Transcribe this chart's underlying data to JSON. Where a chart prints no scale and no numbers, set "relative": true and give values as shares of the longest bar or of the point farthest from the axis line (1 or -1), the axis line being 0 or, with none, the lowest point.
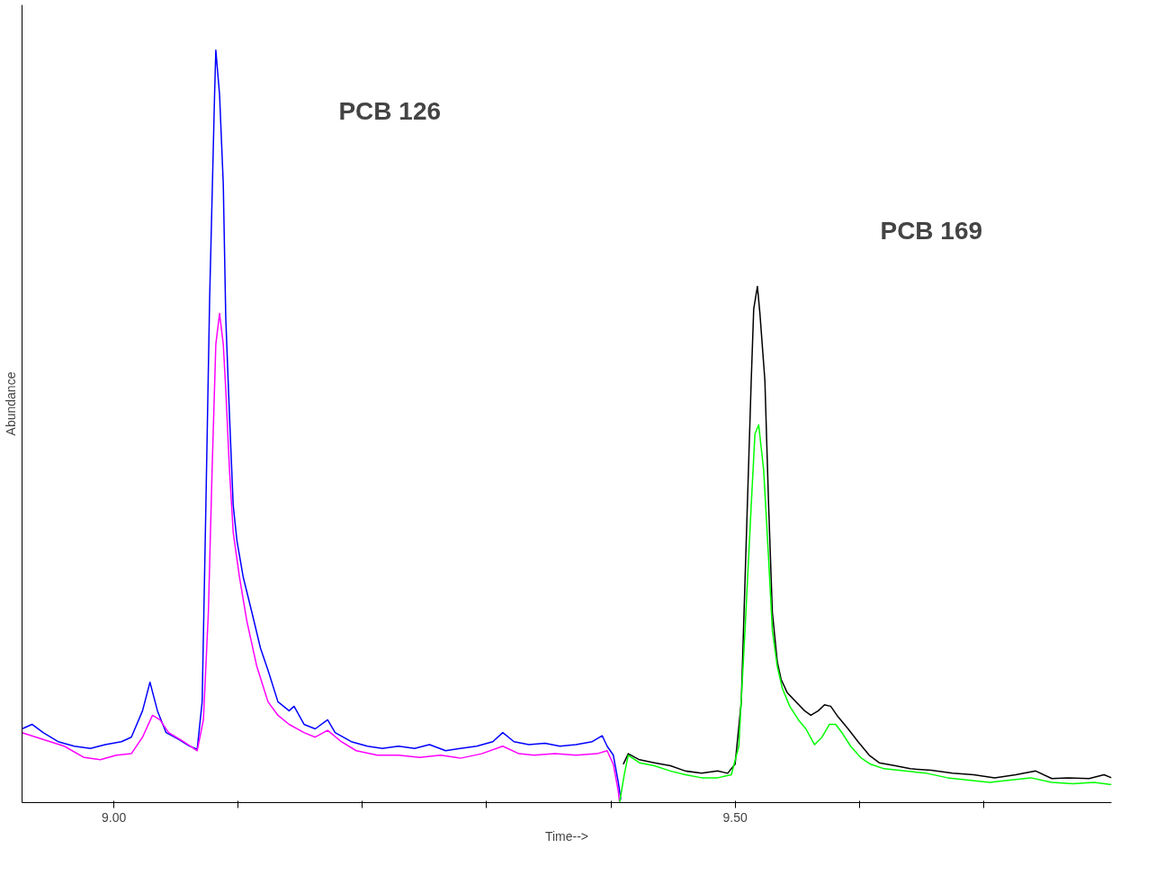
{
  "chart_data": {
    "type": "line",
    "relative": true,
    "xlabel": "Time-->",
    "ylabel": "Abundance",
    "xlim": [
      8.926,
      9.803
    ],
    "xticks": [
      {
        "value": 9.0,
        "label": "9.00"
      },
      {
        "value": 9.1,
        "label": null
      },
      {
        "value": 9.2,
        "label": null
      },
      {
        "value": 9.3,
        "label": null
      },
      {
        "value": 9.4,
        "label": null
      },
      {
        "value": 9.5,
        "label": "9.50"
      },
      {
        "value": 9.6,
        "label": null
      },
      {
        "value": 9.7,
        "label": null
      }
    ],
    "tick_labels": "x",
    "grid": false,
    "marker": "none",
    "line_style": "solid",
    "annotations": [
      "PCB 126",
      "PCB 169"
    ],
    "series": [
      {
        "color": "#0000ff",
        "x": [
          8.926,
          8.934,
          8.943,
          8.955,
          8.968,
          8.981,
          8.993,
          9.006,
          9.014,
          9.023,
          9.029,
          9.035,
          9.042,
          9.052,
          9.061,
          9.067,
          9.071,
          9.074,
          9.077,
          9.081,
          9.082,
          9.085,
          9.088,
          9.09,
          9.093,
          9.096,
          9.099,
          9.104,
          9.111,
          9.118,
          9.124,
          9.132,
          9.141,
          9.145,
          9.153,
          9.162,
          9.172,
          9.178,
          9.191,
          9.204,
          9.216,
          9.229,
          9.242,
          9.254,
          9.267,
          9.279,
          9.292,
          9.305,
          9.313,
          9.322,
          9.334,
          9.347,
          9.359,
          9.372,
          9.385,
          9.393,
          9.397,
          9.402,
          9.406,
          9.408
        ],
        "values": [
          0.098,
          0.104,
          0.093,
          0.081,
          0.075,
          0.072,
          0.077,
          0.081,
          0.087,
          0.122,
          0.16,
          0.122,
          0.093,
          0.084,
          0.075,
          0.071,
          0.134,
          0.395,
          0.668,
          0.941,
          1.0,
          0.941,
          0.822,
          0.644,
          0.514,
          0.395,
          0.348,
          0.3,
          0.253,
          0.205,
          0.176,
          0.134,
          0.122,
          0.128,
          0.104,
          0.098,
          0.11,
          0.093,
          0.081,
          0.075,
          0.072,
          0.075,
          0.072,
          0.077,
          0.069,
          0.072,
          0.075,
          0.081,
          0.093,
          0.081,
          0.077,
          0.079,
          0.075,
          0.077,
          0.081,
          0.089,
          0.075,
          0.063,
          0.027,
          0.004
        ]
      },
      {
        "color": "#ff00ff",
        "x": [
          8.926,
          8.943,
          8.96,
          8.976,
          8.989,
          9.002,
          9.014,
          9.023,
          9.031,
          9.037,
          9.044,
          9.056,
          9.067,
          9.072,
          9.076,
          9.079,
          9.082,
          9.085,
          9.088,
          9.09,
          9.093,
          9.096,
          9.101,
          9.107,
          9.115,
          9.124,
          9.132,
          9.141,
          9.153,
          9.162,
          9.172,
          9.183,
          9.195,
          9.212,
          9.229,
          9.246,
          9.263,
          9.279,
          9.296,
          9.313,
          9.326,
          9.338,
          9.355,
          9.372,
          9.389,
          9.397,
          9.402,
          9.406,
          9.407
        ],
        "values": [
          0.093,
          0.084,
          0.075,
          0.06,
          0.057,
          0.063,
          0.065,
          0.087,
          0.116,
          0.11,
          0.093,
          0.081,
          0.069,
          0.11,
          0.253,
          0.442,
          0.609,
          0.65,
          0.609,
          0.549,
          0.442,
          0.359,
          0.3,
          0.241,
          0.181,
          0.134,
          0.116,
          0.104,
          0.093,
          0.087,
          0.096,
          0.081,
          0.069,
          0.063,
          0.063,
          0.06,
          0.063,
          0.059,
          0.065,
          0.075,
          0.065,
          0.063,
          0.065,
          0.063,
          0.065,
          0.069,
          0.051,
          0.015,
          0.0
        ]
      },
      {
        "color": "#000000",
        "x": [
          9.41,
          9.414,
          9.423,
          9.435,
          9.448,
          9.46,
          9.473,
          9.486,
          9.494,
          9.5,
          9.505,
          9.509,
          9.513,
          9.515,
          9.518,
          9.52,
          9.524,
          9.527,
          9.53,
          9.534,
          9.537,
          9.542,
          9.549,
          9.556,
          9.561,
          9.567,
          9.572,
          9.577,
          9.582,
          9.591,
          9.599,
          9.608,
          9.616,
          9.629,
          9.641,
          9.658,
          9.675,
          9.692,
          9.709,
          9.726,
          9.742,
          9.755,
          9.768,
          9.785,
          9.797,
          9.803
        ],
        "values": [
          0.051,
          0.065,
          0.057,
          0.053,
          0.049,
          0.042,
          0.039,
          0.042,
          0.039,
          0.051,
          0.134,
          0.348,
          0.561,
          0.656,
          0.686,
          0.65,
          0.561,
          0.395,
          0.253,
          0.187,
          0.164,
          0.146,
          0.134,
          0.122,
          0.116,
          0.122,
          0.13,
          0.128,
          0.116,
          0.098,
          0.081,
          0.063,
          0.053,
          0.049,
          0.045,
          0.043,
          0.039,
          0.037,
          0.033,
          0.037,
          0.042,
          0.032,
          0.033,
          0.032,
          0.037,
          0.033
        ]
      },
      {
        "color": "#00ff00",
        "x": [
          9.407,
          9.411,
          9.414,
          9.423,
          9.435,
          9.448,
          9.46,
          9.473,
          9.486,
          9.497,
          9.503,
          9.508,
          9.513,
          9.516,
          9.519,
          9.523,
          9.527,
          9.53,
          9.534,
          9.538,
          9.544,
          9.551,
          9.557,
          9.564,
          9.57,
          9.576,
          9.581,
          9.586,
          9.593,
          9.601,
          9.609,
          9.62,
          9.637,
          9.654,
          9.671,
          9.688,
          9.705,
          9.721,
          9.738,
          9.755,
          9.772,
          9.789,
          9.803
        ],
        "values": [
          0.0,
          0.039,
          0.063,
          0.053,
          0.049,
          0.042,
          0.037,
          0.033,
          0.033,
          0.037,
          0.075,
          0.229,
          0.395,
          0.49,
          0.502,
          0.442,
          0.324,
          0.229,
          0.181,
          0.152,
          0.128,
          0.11,
          0.098,
          0.077,
          0.087,
          0.104,
          0.104,
          0.093,
          0.075,
          0.06,
          0.051,
          0.045,
          0.042,
          0.039,
          0.033,
          0.03,
          0.027,
          0.03,
          0.033,
          0.027,
          0.025,
          0.027,
          0.024
        ]
      }
    ]
  }
}
